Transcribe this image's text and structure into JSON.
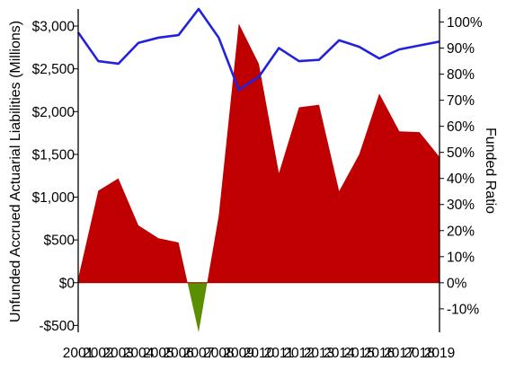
{
  "chart_data": {
    "type": "area",
    "x": [
      2001,
      2002,
      2003,
      2004,
      2005,
      2006,
      2007,
      2008,
      2009,
      2010,
      2011,
      2012,
      2013,
      2014,
      2015,
      2016,
      2017,
      2018,
      2019
    ],
    "x_tick_labels": [
      "2001",
      "2002",
      "2003",
      "2004",
      "2005",
      "2006",
      "2007",
      "2008",
      "2009",
      "2010",
      "2011",
      "2012",
      "2013",
      "2014",
      "2015",
      "2016",
      "2017",
      "2018",
      "2019"
    ],
    "series": [
      {
        "axis": "left",
        "kind": "area",
        "values": [
          50,
          1075,
          1220,
          670,
          520,
          470,
          -580,
          780,
          3030,
          2560,
          1280,
          2050,
          2080,
          1070,
          1500,
          2210,
          1770,
          1760,
          1470
        ],
        "color_positive": "#c00000",
        "color_negative": "#5b8f00"
      },
      {
        "axis": "right",
        "kind": "line",
        "values": [
          96,
          85,
          84,
          92,
          94,
          95,
          105,
          94,
          74,
          79,
          90,
          85,
          85.5,
          93,
          90.5,
          86,
          89.5,
          91,
          92.5
        ],
        "color": "#2222dd"
      }
    ],
    "y_left": {
      "label": "Unfunded Accrued Actuarial Liabilities (Millions)",
      "min": -580,
      "max": 3200,
      "ticks": [
        -500,
        0,
        500,
        1000,
        1500,
        2000,
        2500,
        3000
      ],
      "tick_labels": [
        "-$500",
        "$0",
        "$500",
        "$1,000",
        "$1,500",
        "$2,000",
        "$2,500",
        "$3,000"
      ]
    },
    "y_right": {
      "label": "Funded Ratio",
      "min": -19,
      "max": 105,
      "ticks": [
        -10,
        0,
        10,
        20,
        30,
        40,
        50,
        60,
        70,
        80,
        90,
        100
      ],
      "tick_labels": [
        "-10%",
        "0%",
        "10%",
        "20%",
        "30%",
        "40%",
        "50%",
        "60%",
        "70%",
        "80%",
        "90%",
        "100%"
      ]
    },
    "grid": false,
    "legend": "none"
  }
}
